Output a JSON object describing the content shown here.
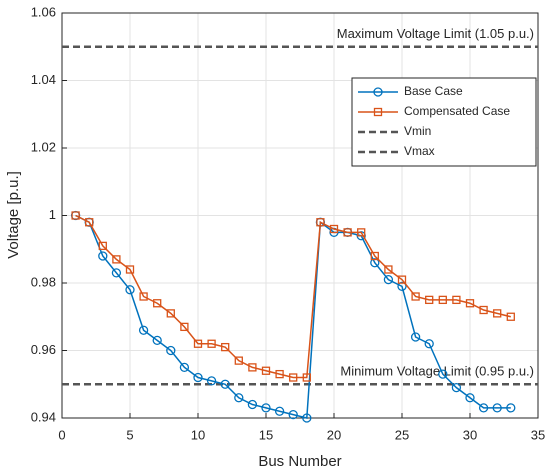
{
  "chart_data": {
    "type": "line",
    "xlabel": "Bus Number",
    "ylabel": "Voltage [p.u.]",
    "xlim": [
      0,
      35
    ],
    "xticks": [
      0,
      5,
      10,
      15,
      20,
      25,
      30,
      35
    ],
    "ylim": [
      0.94,
      1.06
    ],
    "yticks": [
      0.94,
      0.96,
      0.98,
      1,
      1.02,
      1.04,
      1.06
    ],
    "grid": true,
    "legend": "upper right",
    "x": [
      1,
      2,
      3,
      4,
      5,
      6,
      7,
      8,
      9,
      10,
      11,
      12,
      13,
      14,
      15,
      16,
      17,
      18,
      19,
      20,
      21,
      22,
      23,
      24,
      25,
      26,
      27,
      28,
      29,
      30,
      31,
      32,
      33
    ],
    "series": [
      {
        "name": "Base Case",
        "color": "#0072BD",
        "marker": "circle",
        "values": [
          1.0,
          0.998,
          0.988,
          0.983,
          0.978,
          0.966,
          0.963,
          0.96,
          0.955,
          0.952,
          0.951,
          0.95,
          0.946,
          0.944,
          0.943,
          0.942,
          0.941,
          0.94,
          0.998,
          0.995,
          0.995,
          0.994,
          0.986,
          0.981,
          0.979,
          0.964,
          0.962,
          0.953,
          0.949,
          0.946,
          0.943,
          0.943,
          0.943
        ]
      },
      {
        "name": "Compensated Case",
        "color": "#D95319",
        "marker": "square",
        "values": [
          1.0,
          0.998,
          0.991,
          0.987,
          0.984,
          0.976,
          0.974,
          0.971,
          0.967,
          0.962,
          0.962,
          0.961,
          0.957,
          0.955,
          0.954,
          0.953,
          0.952,
          0.952,
          0.998,
          0.996,
          0.995,
          0.995,
          0.988,
          0.984,
          0.981,
          0.976,
          0.975,
          0.975,
          0.975,
          0.974,
          0.972,
          0.971,
          0.97
        ]
      }
    ],
    "reference_lines": [
      {
        "name": "Vmin",
        "value": 0.95,
        "color": "#555555",
        "label": "Minimum Voltage Limit (0.95 p.u.)"
      },
      {
        "name": "Vmax",
        "value": 1.05,
        "color": "#555555",
        "label": "Maximum Voltage Limit (1.05 p.u.)"
      }
    ]
  }
}
